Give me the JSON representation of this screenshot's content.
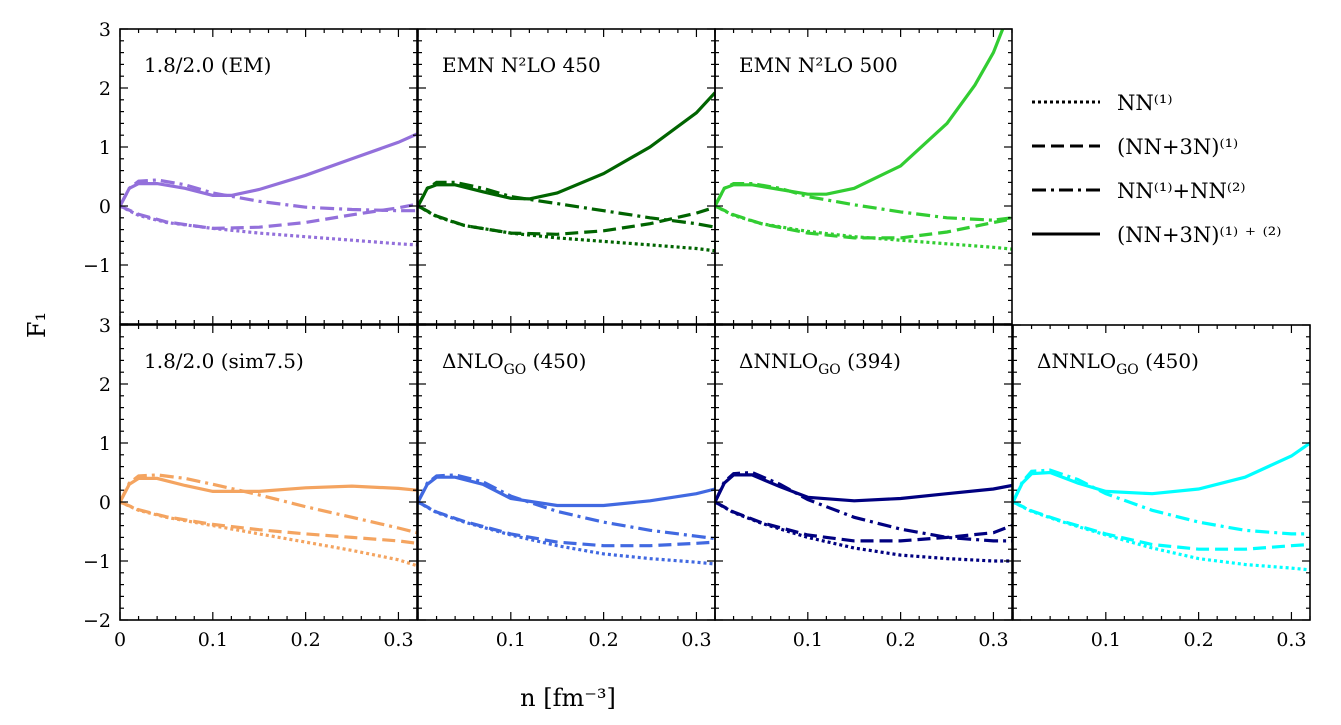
{
  "chart_data": {
    "type": "line",
    "xlabel": "n [fm⁻³]",
    "ylabel": "F₁",
    "xlim": [
      0,
      0.32
    ],
    "ylim": [
      -2,
      3
    ],
    "x_ticks": [
      0,
      0.1,
      0.2,
      0.3
    ],
    "x_tick_labels": [
      "0",
      "0.1",
      "0.2",
      "0.3"
    ],
    "y_ticks": [
      -2,
      -1,
      0,
      1,
      2,
      3
    ],
    "y_tick_labels": [
      "−2",
      "−1",
      "0",
      "1",
      "2",
      "3"
    ],
    "legend": {
      "position": "right of top row",
      "entries": [
        {
          "style": "dotted",
          "label": "NN⁽¹⁾"
        },
        {
          "style": "dashed",
          "label": "(NN+3N)⁽¹⁾"
        },
        {
          "style": "dashdot",
          "label": "NN⁽¹⁾+NN⁽²⁾"
        },
        {
          "style": "solid",
          "label": "(NN+3N)⁽¹⁾ ⁺ ⁽²⁾"
        }
      ]
    },
    "panels": [
      {
        "label": "1.8/2.0 (EM)",
        "color": "#9370DB",
        "series": [
          {
            "style": "dotted",
            "x": [
              0,
              0.02,
              0.05,
              0.1,
              0.15,
              0.2,
              0.25,
              0.3,
              0.32
            ],
            "y": [
              0,
              -0.16,
              -0.28,
              -0.38,
              -0.46,
              -0.52,
              -0.58,
              -0.64,
              -0.66
            ]
          },
          {
            "style": "dashed",
            "x": [
              0,
              0.02,
              0.05,
              0.1,
              0.15,
              0.2,
              0.25,
              0.3,
              0.32
            ],
            "y": [
              0,
              -0.14,
              -0.27,
              -0.38,
              -0.36,
              -0.28,
              -0.15,
              -0.03,
              0.03
            ]
          },
          {
            "style": "dashdot",
            "x": [
              0,
              0.01,
              0.02,
              0.04,
              0.07,
              0.1,
              0.15,
              0.2,
              0.25,
              0.3,
              0.32
            ],
            "y": [
              0,
              0.3,
              0.42,
              0.44,
              0.36,
              0.22,
              0.08,
              -0.02,
              -0.06,
              -0.08,
              -0.08
            ]
          },
          {
            "style": "solid",
            "x": [
              0,
              0.01,
              0.02,
              0.04,
              0.07,
              0.1,
              0.12,
              0.15,
              0.2,
              0.25,
              0.3,
              0.32
            ],
            "y": [
              0,
              0.3,
              0.38,
              0.38,
              0.3,
              0.18,
              0.18,
              0.28,
              0.52,
              0.8,
              1.08,
              1.22
            ]
          }
        ]
      },
      {
        "label": "EMN N²LO 450",
        "color": "#006400",
        "series": [
          {
            "style": "dotted",
            "x": [
              0,
              0.02,
              0.05,
              0.1,
              0.15,
              0.2,
              0.25,
              0.3,
              0.32
            ],
            "y": [
              0,
              -0.18,
              -0.33,
              -0.46,
              -0.54,
              -0.6,
              -0.66,
              -0.72,
              -0.76
            ]
          },
          {
            "style": "dashed",
            "x": [
              0,
              0.02,
              0.05,
              0.1,
              0.15,
              0.2,
              0.25,
              0.3,
              0.32
            ],
            "y": [
              0,
              -0.17,
              -0.33,
              -0.46,
              -0.48,
              -0.42,
              -0.3,
              -0.12,
              -0.02
            ]
          },
          {
            "style": "dashdot",
            "x": [
              0,
              0.01,
              0.02,
              0.04,
              0.07,
              0.1,
              0.15,
              0.2,
              0.25,
              0.3,
              0.32
            ],
            "y": [
              0,
              0.3,
              0.4,
              0.4,
              0.3,
              0.16,
              0.04,
              -0.08,
              -0.2,
              -0.3,
              -0.36
            ]
          },
          {
            "style": "solid",
            "x": [
              0,
              0.01,
              0.02,
              0.04,
              0.07,
              0.1,
              0.12,
              0.15,
              0.2,
              0.25,
              0.3,
              0.32
            ],
            "y": [
              0,
              0.3,
              0.36,
              0.36,
              0.24,
              0.13,
              0.12,
              0.22,
              0.55,
              1.0,
              1.58,
              1.92
            ]
          }
        ]
      },
      {
        "label": "EMN N²LO 500",
        "color": "#32CD32",
        "series": [
          {
            "style": "dotted",
            "x": [
              0,
              0.02,
              0.05,
              0.1,
              0.15,
              0.2,
              0.25,
              0.3,
              0.32
            ],
            "y": [
              0,
              -0.16,
              -0.3,
              -0.43,
              -0.52,
              -0.58,
              -0.64,
              -0.7,
              -0.73
            ]
          },
          {
            "style": "dashed",
            "x": [
              0,
              0.02,
              0.05,
              0.1,
              0.15,
              0.2,
              0.25,
              0.3,
              0.32
            ],
            "y": [
              0,
              -0.15,
              -0.3,
              -0.46,
              -0.54,
              -0.54,
              -0.44,
              -0.28,
              -0.22
            ]
          },
          {
            "style": "dashdot",
            "x": [
              0,
              0.01,
              0.02,
              0.04,
              0.07,
              0.1,
              0.15,
              0.2,
              0.25,
              0.3,
              0.32
            ],
            "y": [
              0,
              0.3,
              0.38,
              0.38,
              0.3,
              0.16,
              0.02,
              -0.1,
              -0.2,
              -0.24,
              -0.2
            ]
          },
          {
            "style": "solid",
            "x": [
              0,
              0.01,
              0.02,
              0.04,
              0.07,
              0.1,
              0.12,
              0.15,
              0.2,
              0.25,
              0.28,
              0.3,
              0.31
            ],
            "y": [
              0,
              0.3,
              0.36,
              0.36,
              0.28,
              0.2,
              0.2,
              0.3,
              0.68,
              1.4,
              2.05,
              2.6,
              3.0
            ]
          }
        ]
      },
      {
        "label": "1.8/2.0 (sim7.5)",
        "color": "#F4A460",
        "series": [
          {
            "style": "dotted",
            "x": [
              0,
              0.02,
              0.05,
              0.1,
              0.15,
              0.2,
              0.25,
              0.3,
              0.32
            ],
            "y": [
              0,
              -0.14,
              -0.26,
              -0.4,
              -0.54,
              -0.68,
              -0.82,
              -0.98,
              -1.08
            ]
          },
          {
            "style": "dashed",
            "x": [
              0,
              0.02,
              0.05,
              0.1,
              0.15,
              0.2,
              0.25,
              0.3,
              0.32
            ],
            "y": [
              0,
              -0.13,
              -0.25,
              -0.38,
              -0.47,
              -0.54,
              -0.6,
              -0.66,
              -0.7
            ]
          },
          {
            "style": "dashdot",
            "x": [
              0,
              0.01,
              0.02,
              0.04,
              0.07,
              0.1,
              0.15,
              0.2,
              0.25,
              0.3,
              0.32
            ],
            "y": [
              0,
              0.32,
              0.44,
              0.46,
              0.4,
              0.3,
              0.12,
              -0.08,
              -0.26,
              -0.44,
              -0.52
            ]
          },
          {
            "style": "solid",
            "x": [
              0,
              0.01,
              0.02,
              0.04,
              0.07,
              0.1,
              0.15,
              0.2,
              0.25,
              0.3,
              0.32
            ],
            "y": [
              0,
              0.3,
              0.4,
              0.4,
              0.28,
              0.18,
              0.18,
              0.24,
              0.27,
              0.23,
              0.2
            ]
          }
        ]
      },
      {
        "label": "ΔNLO_GO (450)",
        "color": "#4169E1",
        "series": [
          {
            "style": "dotted",
            "x": [
              0,
              0.02,
              0.05,
              0.1,
              0.15,
              0.2,
              0.25,
              0.3,
              0.32
            ],
            "y": [
              0,
              -0.18,
              -0.34,
              -0.56,
              -0.74,
              -0.88,
              -0.96,
              -1.02,
              -1.05
            ]
          },
          {
            "style": "dashed",
            "x": [
              0,
              0.02,
              0.05,
              0.1,
              0.15,
              0.2,
              0.25,
              0.3,
              0.32
            ],
            "y": [
              0,
              -0.17,
              -0.33,
              -0.54,
              -0.68,
              -0.74,
              -0.74,
              -0.7,
              -0.68
            ]
          },
          {
            "style": "dashdot",
            "x": [
              0,
              0.01,
              0.02,
              0.04,
              0.07,
              0.1,
              0.15,
              0.2,
              0.25,
              0.3,
              0.32
            ],
            "y": [
              0,
              0.32,
              0.44,
              0.46,
              0.34,
              0.1,
              -0.16,
              -0.34,
              -0.48,
              -0.58,
              -0.62
            ]
          },
          {
            "style": "solid",
            "x": [
              0,
              0.01,
              0.02,
              0.04,
              0.07,
              0.1,
              0.15,
              0.2,
              0.25,
              0.3,
              0.32
            ],
            "y": [
              0,
              0.3,
              0.42,
              0.42,
              0.3,
              0.06,
              -0.06,
              -0.06,
              0.02,
              0.14,
              0.22
            ]
          }
        ]
      },
      {
        "label": "ΔNNLO_GO (394)",
        "color": "#000080",
        "series": [
          {
            "style": "dotted",
            "x": [
              0,
              0.02,
              0.05,
              0.1,
              0.15,
              0.2,
              0.25,
              0.3,
              0.32
            ],
            "y": [
              0,
              -0.18,
              -0.36,
              -0.6,
              -0.78,
              -0.9,
              -0.96,
              -1.0,
              -1.0
            ]
          },
          {
            "style": "dashed",
            "x": [
              0,
              0.02,
              0.05,
              0.1,
              0.15,
              0.2,
              0.25,
              0.3,
              0.32
            ],
            "y": [
              0,
              -0.17,
              -0.35,
              -0.56,
              -0.66,
              -0.66,
              -0.6,
              -0.52,
              -0.4
            ]
          },
          {
            "style": "dashdot",
            "x": [
              0,
              0.01,
              0.02,
              0.04,
              0.07,
              0.1,
              0.15,
              0.2,
              0.25,
              0.3,
              0.32
            ],
            "y": [
              0,
              0.34,
              0.48,
              0.5,
              0.3,
              0.04,
              -0.26,
              -0.46,
              -0.6,
              -0.66,
              -0.66
            ]
          },
          {
            "style": "solid",
            "x": [
              0,
              0.01,
              0.02,
              0.04,
              0.07,
              0.1,
              0.15,
              0.2,
              0.25,
              0.3,
              0.32
            ],
            "y": [
              0,
              0.32,
              0.46,
              0.46,
              0.26,
              0.08,
              0.02,
              0.06,
              0.14,
              0.22,
              0.28
            ]
          }
        ]
      },
      {
        "label": "ΔNNLO_GO (450)",
        "color": "#00FFFF",
        "series": [
          {
            "style": "dotted",
            "x": [
              0,
              0.02,
              0.05,
              0.1,
              0.15,
              0.2,
              0.25,
              0.3,
              0.32
            ],
            "y": [
              0,
              -0.16,
              -0.32,
              -0.56,
              -0.78,
              -0.96,
              -1.06,
              -1.12,
              -1.15
            ]
          },
          {
            "style": "dashed",
            "x": [
              0,
              0.02,
              0.05,
              0.1,
              0.15,
              0.2,
              0.25,
              0.3,
              0.32
            ],
            "y": [
              0,
              -0.15,
              -0.31,
              -0.54,
              -0.72,
              -0.8,
              -0.8,
              -0.74,
              -0.72
            ]
          },
          {
            "style": "dashdot",
            "x": [
              0,
              0.01,
              0.02,
              0.04,
              0.07,
              0.1,
              0.15,
              0.2,
              0.25,
              0.3,
              0.32
            ],
            "y": [
              0,
              0.34,
              0.52,
              0.54,
              0.38,
              0.14,
              -0.14,
              -0.34,
              -0.48,
              -0.54,
              -0.54
            ]
          },
          {
            "style": "solid",
            "x": [
              0,
              0.01,
              0.02,
              0.04,
              0.07,
              0.1,
              0.15,
              0.2,
              0.25,
              0.3,
              0.32
            ],
            "y": [
              0,
              0.32,
              0.48,
              0.5,
              0.32,
              0.18,
              0.14,
              0.22,
              0.42,
              0.78,
              1.0
            ]
          }
        ]
      }
    ]
  }
}
